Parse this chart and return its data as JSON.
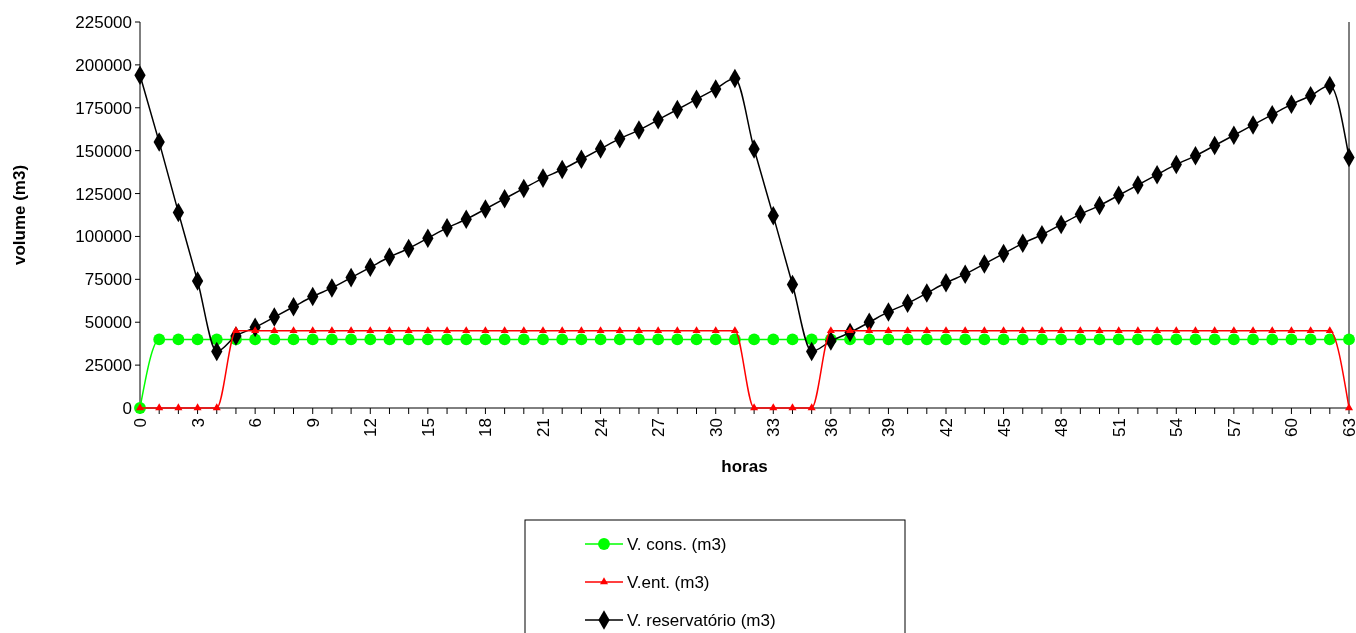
{
  "chart_data": {
    "type": "line",
    "xlabel": "horas",
    "ylabel": "volume (m3)",
    "x": [
      0,
      1,
      2,
      3,
      4,
      5,
      6,
      7,
      8,
      9,
      10,
      11,
      12,
      13,
      14,
      15,
      16,
      17,
      18,
      19,
      20,
      21,
      22,
      23,
      24,
      25,
      26,
      27,
      28,
      29,
      30,
      31,
      32,
      33,
      34,
      35,
      36,
      37,
      38,
      39,
      40,
      41,
      42,
      43,
      44,
      45,
      46,
      47,
      48,
      49,
      50,
      51,
      52,
      53,
      54,
      55,
      56,
      57,
      58,
      59,
      60,
      61,
      62,
      63
    ],
    "xlim": [
      0,
      63
    ],
    "xticks": [
      0,
      {
        "value": 1,
        "label": null
      },
      {
        "value": 2,
        "label": null
      },
      3,
      {
        "value": 4,
        "label": null
      },
      {
        "value": 5,
        "label": null
      },
      6,
      {
        "value": 7,
        "label": null
      },
      {
        "value": 8,
        "label": null
      },
      9,
      {
        "value": 10,
        "label": null
      },
      {
        "value": 11,
        "label": null
      },
      12,
      {
        "value": 13,
        "label": null
      },
      {
        "value": 14,
        "label": null
      },
      15,
      {
        "value": 16,
        "label": null
      },
      {
        "value": 17,
        "label": null
      },
      18,
      {
        "value": 19,
        "label": null
      },
      {
        "value": 20,
        "label": null
      },
      21,
      {
        "value": 22,
        "label": null
      },
      {
        "value": 23,
        "label": null
      },
      24,
      {
        "value": 25,
        "label": null
      },
      {
        "value": 26,
        "label": null
      },
      27,
      {
        "value": 28,
        "label": null
      },
      {
        "value": 29,
        "label": null
      },
      30,
      {
        "value": 31,
        "label": null
      },
      {
        "value": 32,
        "label": null
      },
      33,
      {
        "value": 34,
        "label": null
      },
      {
        "value": 35,
        "label": null
      },
      36,
      {
        "value": 37,
        "label": null
      },
      {
        "value": 38,
        "label": null
      },
      39,
      {
        "value": 40,
        "label": null
      },
      {
        "value": 41,
        "label": null
      },
      42,
      {
        "value": 43,
        "label": null
      },
      {
        "value": 44,
        "label": null
      },
      45,
      {
        "value": 46,
        "label": null
      },
      {
        "value": 47,
        "label": null
      },
      48,
      {
        "value": 49,
        "label": null
      },
      {
        "value": 50,
        "label": null
      },
      51,
      {
        "value": 52,
        "label": null
      },
      {
        "value": 53,
        "label": null
      },
      54,
      {
        "value": 55,
        "label": null
      },
      {
        "value": 56,
        "label": null
      },
      57,
      {
        "value": 58,
        "label": null
      },
      {
        "value": 59,
        "label": null
      },
      60,
      {
        "value": 61,
        "label": null
      },
      {
        "value": 62,
        "label": null
      },
      63
    ],
    "ylim": [
      0,
      225000
    ],
    "yticks": [
      0,
      25000,
      50000,
      75000,
      100000,
      125000,
      150000,
      175000,
      200000,
      225000
    ],
    "grid": false,
    "legend": "bottom",
    "series": [
      {
        "name": "V. cons. (m3)",
        "color": "#00ff00",
        "marker": "circle",
        "values": [
          0,
          40000,
          40000,
          40000,
          40000,
          40000,
          40000,
          40000,
          40000,
          40000,
          40000,
          40000,
          40000,
          40000,
          40000,
          40000,
          40000,
          40000,
          40000,
          40000,
          40000,
          40000,
          40000,
          40000,
          40000,
          40000,
          40000,
          40000,
          40000,
          40000,
          40000,
          40000,
          40000,
          40000,
          40000,
          40000,
          40000,
          40000,
          40000,
          40000,
          40000,
          40000,
          40000,
          40000,
          40000,
          40000,
          40000,
          40000,
          40000,
          40000,
          40000,
          40000,
          40000,
          40000,
          40000,
          40000,
          40000,
          40000,
          40000,
          40000,
          40000,
          40000,
          40000,
          40000
        ]
      },
      {
        "name": "V.ent. (m3)",
        "color": "#ff0000",
        "marker": "triangle",
        "values": [
          0,
          0,
          0,
          0,
          0,
          45000,
          45000,
          45000,
          45000,
          45000,
          45000,
          45000,
          45000,
          45000,
          45000,
          45000,
          45000,
          45000,
          45000,
          45000,
          45000,
          45000,
          45000,
          45000,
          45000,
          45000,
          45000,
          45000,
          45000,
          45000,
          45000,
          45000,
          0,
          0,
          0,
          0,
          45000,
          45000,
          45000,
          45000,
          45000,
          45000,
          45000,
          45000,
          45000,
          45000,
          45000,
          45000,
          45000,
          45000,
          45000,
          45000,
          45000,
          45000,
          45000,
          45000,
          45000,
          45000,
          45000,
          45000,
          45000,
          45000,
          45000,
          0
        ]
      },
      {
        "name": "V. reservatório (m3)",
        "color": "#000000",
        "marker": "diamond",
        "values": [
          194000,
          155000,
          114000,
          74000,
          33000,
          42000,
          47000,
          53000,
          59000,
          65000,
          70000,
          76000,
          82000,
          88000,
          93000,
          99000,
          105000,
          110000,
          116000,
          122000,
          128000,
          134000,
          139000,
          145000,
          151000,
          157000,
          162000,
          168000,
          174000,
          180000,
          186000,
          192000,
          151000,
          112000,
          72000,
          33000,
          39000,
          44000,
          50000,
          56000,
          61000,
          67000,
          73000,
          78000,
          84000,
          90000,
          96000,
          101000,
          107000,
          113000,
          118000,
          124000,
          130000,
          136000,
          142000,
          147000,
          153000,
          159000,
          165000,
          171000,
          177000,
          182000,
          188000,
          146000
        ]
      }
    ]
  }
}
